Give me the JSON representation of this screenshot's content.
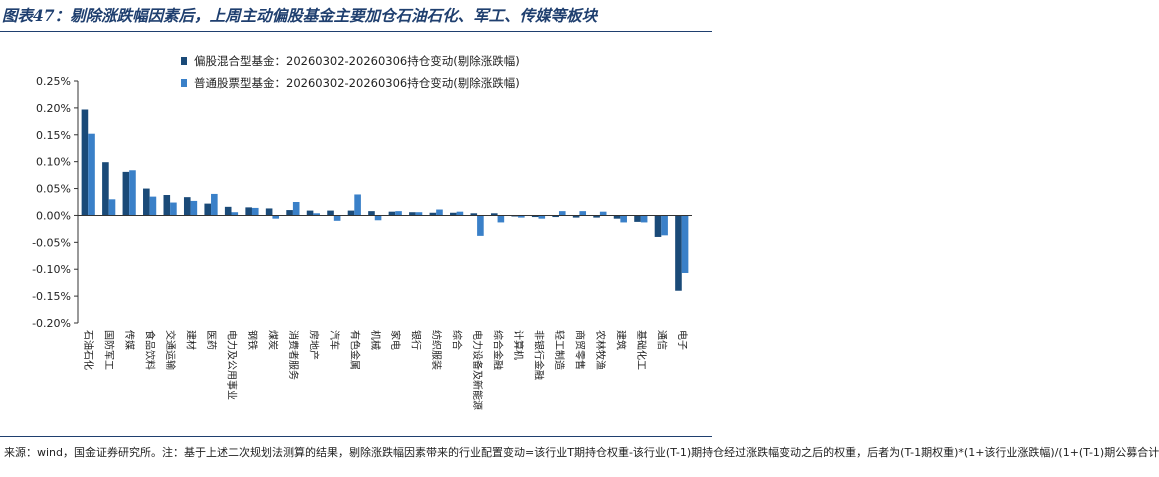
{
  "figure_title": "图表47：剔除涨跌幅因素后，上周主动偏股基金主要加仓石油石化、军工、传媒等板块",
  "source_note": "来源：wind，国金证券研究所。注：基于上述二次规划法测算的结果，剔除涨跌幅因素带来的行业配置变动=该行业T期持仓权重-该行业(T-1)期持仓经过涨跌幅变动之后的权重，后者为(T-1期权重)*(1+该行业涨跌幅)/(1+(T-1)期公募合计",
  "chart_data": {
    "type": "bar",
    "categories": [
      "石油石化",
      "国防军工",
      "传媒",
      "食品饮料",
      "交通运输",
      "建材",
      "医药",
      "电力及公用事业",
      "钢铁",
      "煤炭",
      "消费者服务",
      "房地产",
      "汽车",
      "有色金属",
      "机械",
      "家电",
      "银行",
      "纺织服装",
      "综合",
      "电力设备及新能源",
      "综合金融",
      "计算机",
      "非银行金融",
      "轻工制造",
      "商贸零售",
      "农林牧渔",
      "建筑",
      "基础化工",
      "通信",
      "电子"
    ],
    "series": [
      {
        "name": "偏股混合型基金：20260302-20260306持仓变动(剔除涨跌幅)",
        "color": "#1a4a78",
        "values": [
          0.197,
          0.099,
          0.081,
          0.05,
          0.038,
          0.034,
          0.022,
          0.016,
          0.015,
          0.013,
          0.01,
          0.009,
          0.009,
          0.009,
          0.008,
          0.007,
          0.006,
          0.005,
          0.005,
          0.004,
          0.004,
          -0.002,
          -0.003,
          -0.003,
          -0.004,
          -0.004,
          -0.006,
          -0.012,
          -0.04,
          -0.14
        ]
      },
      {
        "name": "普通股票型基金：20260302-20260306持仓变动(剔除涨跌幅)",
        "color": "#3a80c8",
        "values": [
          0.152,
          0.03,
          0.084,
          0.035,
          0.024,
          0.027,
          0.04,
          0.006,
          0.014,
          -0.006,
          0.025,
          0.004,
          -0.01,
          0.039,
          -0.009,
          0.008,
          0.006,
          0.011,
          0.007,
          -0.038,
          -0.013,
          -0.004,
          -0.006,
          0.008,
          0.008,
          0.007,
          -0.013,
          -0.013,
          -0.037,
          -0.107
        ]
      }
    ],
    "y_ticks": [
      "0.25%",
      "0.20%",
      "0.15%",
      "0.10%",
      "0.05%",
      "0.00%",
      "-0.05%",
      "-0.10%",
      "-0.15%",
      "-0.20%"
    ],
    "ylim": [
      -0.2,
      0.25
    ],
    "ylabel": "",
    "xlabel": "",
    "grid": false,
    "legend_position": "top"
  }
}
